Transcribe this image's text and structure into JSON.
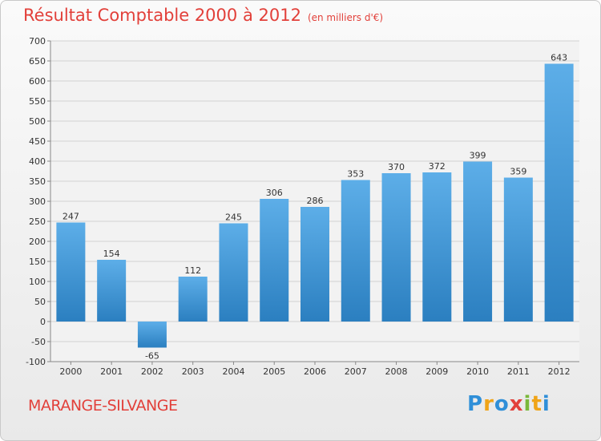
{
  "title": "Résultat Comptable 2000 à 2012",
  "subtitle": "(en milliers d'€)",
  "commune": "MARANGE-SILVANGE",
  "logo": {
    "text": "Proxiti",
    "letters": [
      {
        "char": "P",
        "color": "#2f8fd8"
      },
      {
        "char": "r",
        "color": "#f0a418"
      },
      {
        "char": "o",
        "color": "#2f8fd8"
      },
      {
        "char": "x",
        "color": "#e2403a"
      },
      {
        "char": "i",
        "color": "#79b83a"
      },
      {
        "char": "t",
        "color": "#f0a418"
      },
      {
        "char": "i",
        "color": "#2f8fd8"
      }
    ]
  },
  "colors": {
    "bar_top": "#5daee8",
    "bar_bottom": "#2b7fc0",
    "title": "#e2403a",
    "grid": "#d2d2d2"
  },
  "chart_data": {
    "type": "bar",
    "categories": [
      "2000",
      "2001",
      "2002",
      "2003",
      "2004",
      "2005",
      "2006",
      "2007",
      "2008",
      "2009",
      "2010",
      "2011",
      "2012"
    ],
    "values": [
      247,
      154,
      -65,
      112,
      245,
      306,
      286,
      353,
      370,
      372,
      399,
      359,
      643
    ],
    "ylim": [
      -100,
      700
    ],
    "yticks": [
      -100,
      -50,
      0,
      50,
      100,
      150,
      200,
      250,
      300,
      350,
      400,
      450,
      500,
      550,
      600,
      650,
      700
    ],
    "grid": true
  }
}
